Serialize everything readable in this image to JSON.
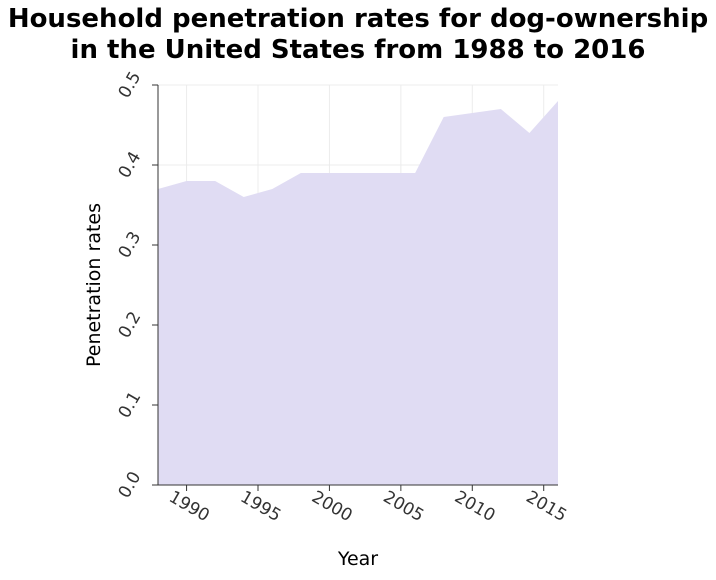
{
  "chart_data": {
    "type": "area",
    "title_lines": [
      "Household penetration rates for dog-ownership",
      "in the United States from 1988 to 2016"
    ],
    "xlabel": "Year",
    "ylabel": "Penetration rates",
    "xlim": [
      1988,
      2016
    ],
    "ylim": [
      0,
      0.5
    ],
    "x_ticks": [
      1990,
      1995,
      2000,
      2005,
      2010,
      2015
    ],
    "y_ticks": [
      "0.0",
      "0.1",
      "0.2",
      "0.3",
      "0.4",
      "0.5"
    ],
    "grid": true,
    "legend": "none",
    "fill_color": "#e0dcf3",
    "grid_color": "#ececec",
    "series": [
      {
        "x": [
          1988,
          1990,
          1992,
          1994,
          1996,
          1998,
          2000,
          2002,
          2004,
          2006,
          2008,
          2010,
          2012,
          2014,
          2016
        ],
        "values": [
          0.37,
          0.38,
          0.38,
          0.36,
          0.37,
          0.39,
          0.39,
          0.39,
          0.39,
          0.39,
          0.46,
          0.465,
          0.47,
          0.44,
          0.48
        ]
      }
    ]
  }
}
